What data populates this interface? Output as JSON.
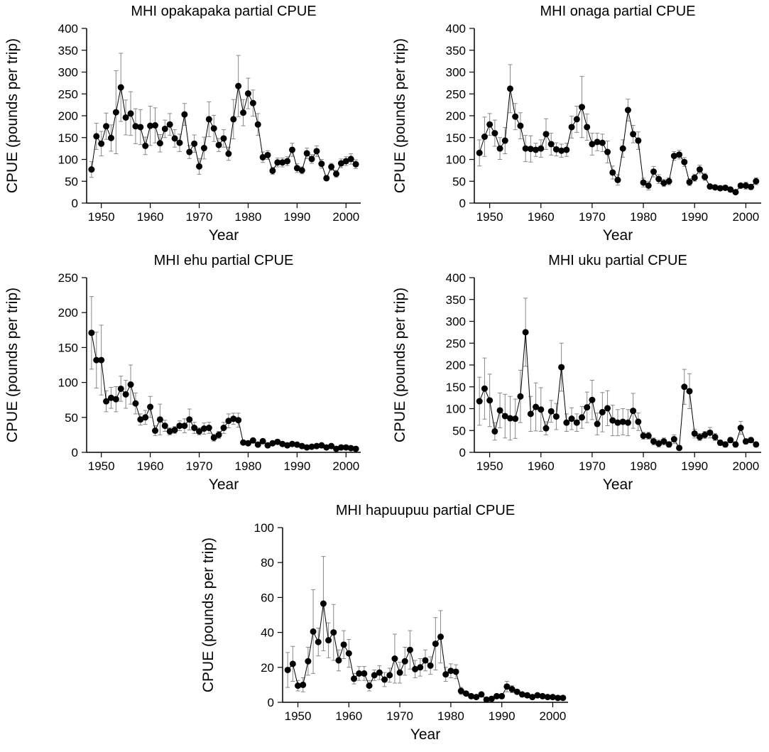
{
  "chart_data": [
    {
      "type": "line",
      "title": "MHI opakapaka partial CPUE",
      "xlabel": "Year",
      "ylabel": "CPUE (pounds per trip)",
      "color": "#000000",
      "x": [
        1948,
        1949,
        1950,
        1951,
        1952,
        1953,
        1954,
        1955,
        1956,
        1957,
        1958,
        1959,
        1960,
        1961,
        1962,
        1963,
        1964,
        1965,
        1966,
        1967,
        1968,
        1969,
        1970,
        1971,
        1972,
        1973,
        1974,
        1975,
        1976,
        1977,
        1978,
        1979,
        1980,
        1981,
        1982,
        1983,
        1984,
        1985,
        1986,
        1987,
        1988,
        1989,
        1990,
        1991,
        1992,
        1993,
        1994,
        1995,
        1996,
        1997,
        1998,
        1999,
        2000,
        2001,
        2002
      ],
      "values": [
        77,
        153,
        136,
        176,
        149,
        208,
        265,
        196,
        205,
        176,
        174,
        131,
        177,
        178,
        137,
        170,
        180,
        148,
        138,
        203,
        117,
        136,
        84,
        126,
        192,
        171,
        133,
        148,
        113,
        192,
        268,
        207,
        251,
        229,
        180,
        105,
        110,
        74,
        93,
        93,
        96,
        122,
        80,
        75,
        114,
        101,
        119,
        90,
        57,
        83,
        67,
        91,
        96,
        101,
        89
      ],
      "errors": [
        18,
        30,
        28,
        30,
        30,
        95,
        78,
        40,
        50,
        40,
        40,
        20,
        45,
        40,
        20,
        20,
        25,
        20,
        20,
        25,
        15,
        20,
        18,
        25,
        40,
        30,
        15,
        20,
        15,
        45,
        70,
        30,
        35,
        30,
        25,
        12,
        10,
        8,
        10,
        10,
        10,
        15,
        10,
        8,
        12,
        10,
        12,
        10,
        6,
        8,
        8,
        10,
        10,
        12,
        10
      ],
      "xlim": [
        1947,
        2003
      ],
      "xticks": [
        1950,
        1960,
        1970,
        1980,
        1990,
        2000
      ],
      "ylim": [
        0,
        400
      ],
      "yticks": [
        0,
        50,
        100,
        150,
        200,
        250,
        300,
        350,
        400
      ]
    },
    {
      "type": "line",
      "title": "MHI onaga partial CPUE",
      "xlabel": "Year",
      "ylabel": "CPUE (pounds per trip)",
      "color": "#000000",
      "x": [
        1948,
        1949,
        1950,
        1951,
        1952,
        1953,
        1954,
        1955,
        1956,
        1957,
        1958,
        1959,
        1960,
        1961,
        1962,
        1963,
        1964,
        1965,
        1966,
        1967,
        1968,
        1969,
        1970,
        1971,
        1972,
        1973,
        1974,
        1975,
        1976,
        1977,
        1978,
        1979,
        1980,
        1981,
        1982,
        1983,
        1984,
        1985,
        1986,
        1987,
        1988,
        1989,
        1990,
        1991,
        1992,
        1993,
        1994,
        1995,
        1996,
        1997,
        1998,
        1999,
        2000,
        2001,
        2002
      ],
      "values": [
        115,
        152,
        180,
        160,
        125,
        143,
        262,
        198,
        177,
        125,
        124,
        122,
        125,
        158,
        135,
        123,
        120,
        122,
        174,
        192,
        220,
        174,
        135,
        140,
        138,
        117,
        70,
        53,
        125,
        213,
        158,
        143,
        47,
        40,
        72,
        55,
        46,
        50,
        108,
        111,
        94,
        48,
        58,
        77,
        60,
        38,
        36,
        34,
        35,
        31,
        25,
        40,
        40,
        37,
        50
      ],
      "errors": [
        30,
        45,
        25,
        30,
        25,
        30,
        55,
        30,
        30,
        30,
        30,
        15,
        20,
        35,
        25,
        15,
        15,
        15,
        25,
        30,
        70,
        30,
        25,
        20,
        20,
        25,
        15,
        12,
        20,
        25,
        20,
        20,
        10,
        10,
        12,
        10,
        8,
        8,
        10,
        10,
        10,
        8,
        8,
        10,
        8,
        5,
        5,
        5,
        5,
        4,
        4,
        4,
        8,
        6,
        8
      ],
      "xlim": [
        1947,
        2003
      ],
      "xticks": [
        1950,
        1960,
        1970,
        1980,
        1990,
        2000
      ],
      "ylim": [
        0,
        400
      ],
      "yticks": [
        0,
        50,
        100,
        150,
        200,
        250,
        300,
        350,
        400
      ]
    },
    {
      "type": "line",
      "title": "MHI ehu partial CPUE",
      "xlabel": "Year",
      "ylabel": "CPUE (pounds per trip)",
      "color": "#000000",
      "x": [
        1948,
        1949,
        1950,
        1951,
        1952,
        1953,
        1954,
        1955,
        1956,
        1957,
        1958,
        1959,
        1960,
        1961,
        1962,
        1963,
        1964,
        1965,
        1966,
        1967,
        1968,
        1969,
        1970,
        1971,
        1972,
        1973,
        1974,
        1975,
        1976,
        1977,
        1978,
        1979,
        1980,
        1981,
        1982,
        1983,
        1984,
        1985,
        1986,
        1987,
        1988,
        1989,
        1990,
        1991,
        1992,
        1993,
        1994,
        1995,
        1996,
        1997,
        1998,
        1999,
        2000,
        2001,
        2002
      ],
      "values": [
        171,
        132,
        132,
        73,
        78,
        76,
        91,
        83,
        97,
        70,
        47,
        50,
        65,
        31,
        47,
        38,
        30,
        32,
        38,
        38,
        47,
        35,
        30,
        34,
        35,
        21,
        25,
        35,
        45,
        48,
        46,
        14,
        13,
        17,
        11,
        16,
        10,
        13,
        15,
        12,
        10,
        12,
        11,
        9,
        7,
        8,
        9,
        10,
        7,
        9,
        5,
        7,
        7,
        6,
        5
      ],
      "errors": [
        52,
        40,
        50,
        15,
        15,
        18,
        18,
        20,
        28,
        15,
        8,
        10,
        15,
        7,
        22,
        8,
        5,
        5,
        7,
        10,
        15,
        8,
        5,
        8,
        8,
        5,
        5,
        8,
        10,
        8,
        10,
        2,
        2,
        2,
        2,
        2,
        2,
        2,
        2,
        2,
        2,
        2,
        2,
        2,
        1,
        1,
        1,
        2,
        1,
        1,
        1,
        1,
        1,
        1,
        1
      ],
      "xlim": [
        1947,
        2003
      ],
      "xticks": [
        1950,
        1960,
        1970,
        1980,
        1990,
        2000
      ],
      "ylim": [
        0,
        250
      ],
      "yticks": [
        0,
        50,
        100,
        150,
        200,
        250
      ]
    },
    {
      "type": "line",
      "title": "MHI uku partial CPUE",
      "xlabel": "Year",
      "ylabel": "CPUE (pounds per trip)",
      "color": "#000000",
      "x": [
        1948,
        1949,
        1950,
        1951,
        1952,
        1953,
        1954,
        1955,
        1956,
        1957,
        1958,
        1959,
        1960,
        1961,
        1962,
        1963,
        1964,
        1965,
        1966,
        1967,
        1968,
        1969,
        1970,
        1971,
        1972,
        1973,
        1974,
        1975,
        1976,
        1977,
        1978,
        1979,
        1980,
        1981,
        1982,
        1983,
        1984,
        1985,
        1986,
        1987,
        1988,
        1989,
        1990,
        1991,
        1992,
        1993,
        1994,
        1995,
        1996,
        1997,
        1998,
        1999,
        2000,
        2001,
        2002
      ],
      "values": [
        117,
        146,
        119,
        48,
        96,
        83,
        78,
        77,
        128,
        275,
        88,
        104,
        98,
        55,
        94,
        82,
        195,
        68,
        77,
        68,
        80,
        103,
        120,
        65,
        92,
        101,
        73,
        68,
        70,
        68,
        95,
        70,
        38,
        38,
        25,
        20,
        25,
        18,
        30,
        10,
        150,
        140,
        43,
        35,
        40,
        45,
        35,
        22,
        18,
        28,
        18,
        56,
        25,
        28,
        18
      ],
      "errors": [
        55,
        70,
        60,
        20,
        40,
        50,
        50,
        45,
        60,
        78,
        40,
        55,
        50,
        15,
        25,
        30,
        55,
        20,
        25,
        20,
        25,
        35,
        45,
        25,
        45,
        40,
        35,
        30,
        30,
        30,
        40,
        20,
        8,
        8,
        8,
        8,
        8,
        6,
        10,
        5,
        40,
        40,
        10,
        8,
        8,
        12,
        8,
        6,
        6,
        6,
        6,
        15,
        6,
        6,
        5
      ],
      "xlim": [
        1947,
        2003
      ],
      "xticks": [
        1950,
        1960,
        1970,
        1980,
        1990,
        2000
      ],
      "ylim": [
        0,
        400
      ],
      "yticks": [
        0,
        50,
        100,
        150,
        200,
        250,
        300,
        350,
        400
      ]
    },
    {
      "type": "line",
      "title": "MHI hapuupuu partial CPUE",
      "xlabel": "Year",
      "ylabel": "CPUE (pounds per trip)",
      "color": "#000000",
      "x": [
        1948,
        1949,
        1950,
        1951,
        1952,
        1953,
        1954,
        1955,
        1956,
        1957,
        1958,
        1959,
        1960,
        1961,
        1962,
        1963,
        1964,
        1965,
        1966,
        1967,
        1968,
        1969,
        1970,
        1971,
        1972,
        1973,
        1974,
        1975,
        1976,
        1977,
        1978,
        1979,
        1980,
        1981,
        1982,
        1983,
        1984,
        1985,
        1986,
        1987,
        1988,
        1989,
        1990,
        1991,
        1992,
        1993,
        1994,
        1995,
        1996,
        1997,
        1998,
        1999,
        2000,
        2001,
        2002
      ],
      "values": [
        18.5,
        22,
        9.5,
        10,
        23.5,
        40.5,
        34.5,
        56.5,
        35.5,
        40,
        24,
        33,
        28,
        13.5,
        16.5,
        16.5,
        9.5,
        15.5,
        17,
        13,
        15.5,
        25,
        17,
        23.5,
        30,
        19,
        20,
        24,
        21,
        33.5,
        37.5,
        16,
        18,
        17.5,
        6.5,
        5,
        3.5,
        3,
        4.5,
        1.5,
        2,
        3.5,
        3.5,
        9,
        7.5,
        6,
        4.5,
        4,
        3,
        4,
        3.5,
        3,
        3,
        2.5,
        2.5
      ],
      "errors": [
        10,
        10,
        3,
        4,
        8,
        24,
        8,
        27,
        10,
        16,
        6,
        8,
        8,
        3,
        4,
        4,
        3,
        3,
        4,
        4,
        4,
        14,
        6,
        8,
        11,
        5,
        5,
        6,
        5,
        15,
        15,
        4,
        4,
        4,
        2,
        1,
        1,
        1,
        1,
        1,
        1,
        1,
        1,
        3,
        2,
        1,
        1,
        1,
        1,
        1,
        1,
        1,
        1,
        1,
        1
      ],
      "xlim": [
        1947,
        2003
      ],
      "xticks": [
        1950,
        1960,
        1970,
        1980,
        1990,
        2000
      ],
      "ylim": [
        0,
        100
      ],
      "yticks": [
        0,
        20,
        40,
        60,
        80,
        100
      ]
    }
  ]
}
